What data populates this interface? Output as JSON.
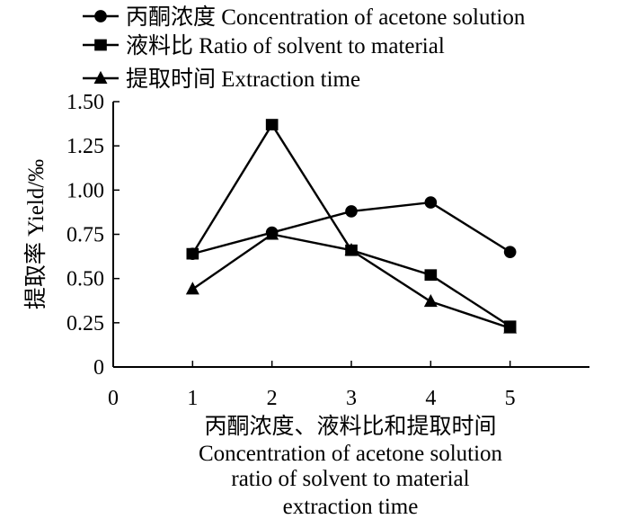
{
  "chart_data": {
    "type": "line",
    "x": [
      1,
      2,
      3,
      4,
      5
    ],
    "xlim": [
      0,
      6
    ],
    "ylim": [
      0,
      1.5
    ],
    "x_ticks": [
      "0",
      "1",
      "2",
      "3",
      "4",
      "5"
    ],
    "y_ticks": [
      "0",
      "0.25",
      "0.50",
      "0.75",
      "1.00",
      "1.25",
      "1.50"
    ],
    "xlabel_lines": [
      "丙酮浓度、液料比和提取时间",
      "Concentration of acetone solution",
      "ratio of solvent to material",
      "extraction time"
    ],
    "ylabel": "提取率  Yield/‰",
    "grid": false,
    "legend_position": "top",
    "series": [
      {
        "name": "丙酮浓度  Concentration of acetone solution",
        "marker": "circle",
        "values": [
          0.64,
          0.76,
          0.88,
          0.93,
          0.65
        ]
      },
      {
        "name": "液料比  Ratio of solvent to material",
        "marker": "square",
        "values": [
          0.64,
          1.37,
          0.66,
          0.52,
          0.23
        ]
      },
      {
        "name": "提取时间  Extraction time",
        "marker": "triangle",
        "values": [
          0.44,
          0.75,
          0.66,
          0.37,
          0.22
        ]
      }
    ]
  }
}
